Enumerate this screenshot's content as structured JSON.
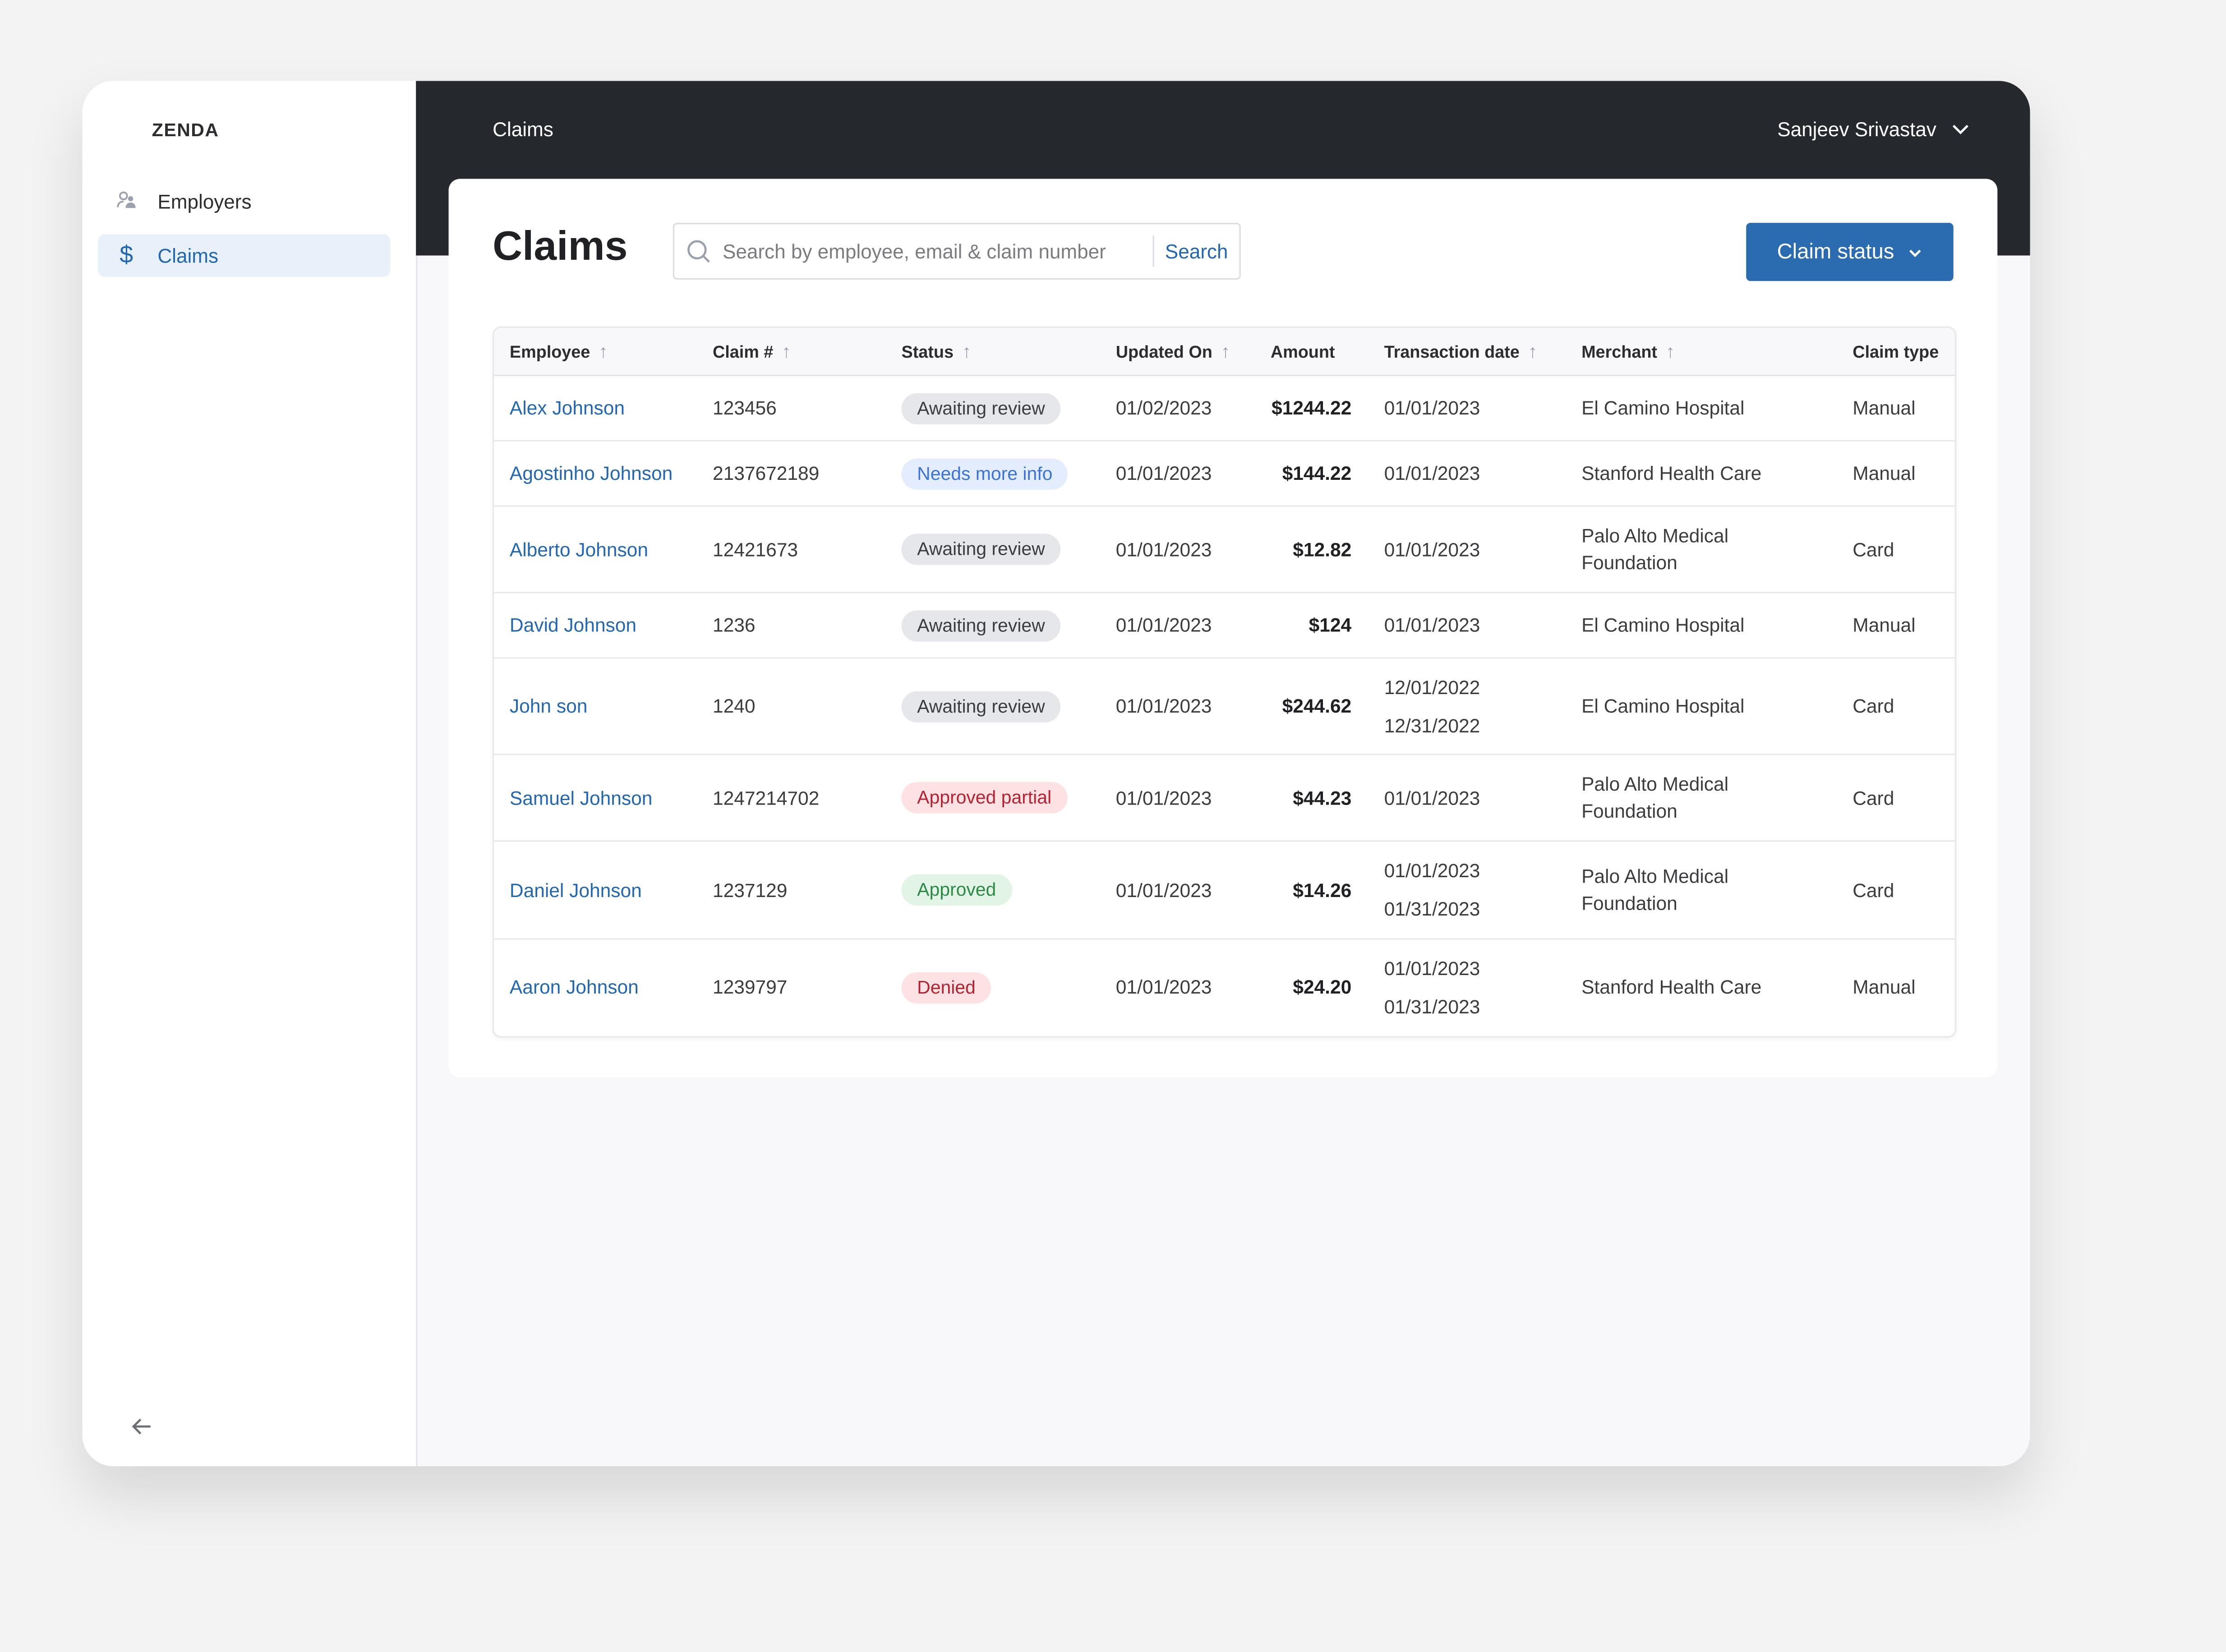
{
  "app": {
    "logo": "ZENDA"
  },
  "sidebar": {
    "items": [
      {
        "label": "Employers",
        "icon": "users-icon",
        "active": false
      },
      {
        "label": "Claims",
        "icon": "dollar-icon",
        "active": true
      }
    ],
    "collapse_icon": "arrow-left-icon"
  },
  "topbar": {
    "title": "Claims",
    "user": "Sanjeev Srivastav"
  },
  "page": {
    "title": "Claims",
    "search_placeholder": "Search by employee, email & claim number",
    "search_button": "Search",
    "status_button": "Claim status"
  },
  "table": {
    "headers": [
      "Employee",
      "Claim #",
      "Status",
      "Updated On",
      "Amount",
      "Transaction date",
      "Merchant",
      "Claim type"
    ],
    "sortable": [
      true,
      true,
      true,
      true,
      false,
      true,
      true,
      false
    ],
    "rows": [
      {
        "employee": "Alex Johnson",
        "claim": "123456",
        "status": "Awaiting review",
        "status_type": "grey",
        "updated": "01/02/2023",
        "amount": "$1244.22",
        "dates": [
          "01/01/2023"
        ],
        "merchant": "El Camino Hospital",
        "type": "Manual"
      },
      {
        "employee": "Agostinho Johnson",
        "claim": "2137672189",
        "status": "Needs more info",
        "status_type": "blue",
        "updated": "01/01/2023",
        "amount": "$144.22",
        "dates": [
          "01/01/2023"
        ],
        "merchant": "Stanford Health Care",
        "type": "Manual"
      },
      {
        "employee": "Alberto Johnson",
        "claim": "12421673",
        "status": "Awaiting review",
        "status_type": "grey",
        "updated": "01/01/2023",
        "amount": "$12.82",
        "dates": [
          "01/01/2023"
        ],
        "merchant": "Palo Alto Medical Foundation",
        "type": "Card"
      },
      {
        "employee": "David Johnson",
        "claim": "1236",
        "status": "Awaiting review",
        "status_type": "grey",
        "updated": "01/01/2023",
        "amount": "$124",
        "dates": [
          "01/01/2023"
        ],
        "merchant": "El Camino Hospital",
        "type": "Manual"
      },
      {
        "employee": "John son",
        "claim": "1240",
        "status": "Awaiting review",
        "status_type": "grey",
        "updated": "01/01/2023",
        "amount": "$244.62",
        "dates": [
          "12/01/2022",
          "12/31/2022"
        ],
        "merchant": "El Camino Hospital",
        "type": "Card"
      },
      {
        "employee": "Samuel Johnson",
        "claim": "1247214702",
        "status": "Approved partial",
        "status_type": "red",
        "updated": "01/01/2023",
        "amount": "$44.23",
        "dates": [
          "01/01/2023"
        ],
        "merchant": "Palo Alto Medical Foundation",
        "type": "Card"
      },
      {
        "employee": "Daniel Johnson",
        "claim": "1237129",
        "status": "Approved",
        "status_type": "green",
        "updated": "01/01/2023",
        "amount": "$14.26",
        "dates": [
          "01/01/2023",
          "01/31/2023"
        ],
        "merchant": "Palo Alto Medical Foundation",
        "type": "Card"
      },
      {
        "employee": "Aaron Johnson",
        "claim": "1239797",
        "status": "Denied",
        "status_type": "red",
        "updated": "01/01/2023",
        "amount": "$24.20",
        "dates": [
          "01/01/2023",
          "01/31/2023"
        ],
        "merchant": "Stanford Health Care",
        "type": "Manual"
      }
    ]
  },
  "colors": {
    "accent": "#2b6cb0",
    "link": "#2367b0",
    "topbar": "#25282c",
    "badges": {
      "grey": {
        "bg": "#e6e7ea",
        "fg": "#3a3c40"
      },
      "blue": {
        "bg": "#e3edfd",
        "fg": "#3b73d6"
      },
      "red": {
        "bg": "#fde1e3",
        "fg": "#b42332"
      },
      "green": {
        "bg": "#e2f4e6",
        "fg": "#2c8a46"
      }
    }
  }
}
